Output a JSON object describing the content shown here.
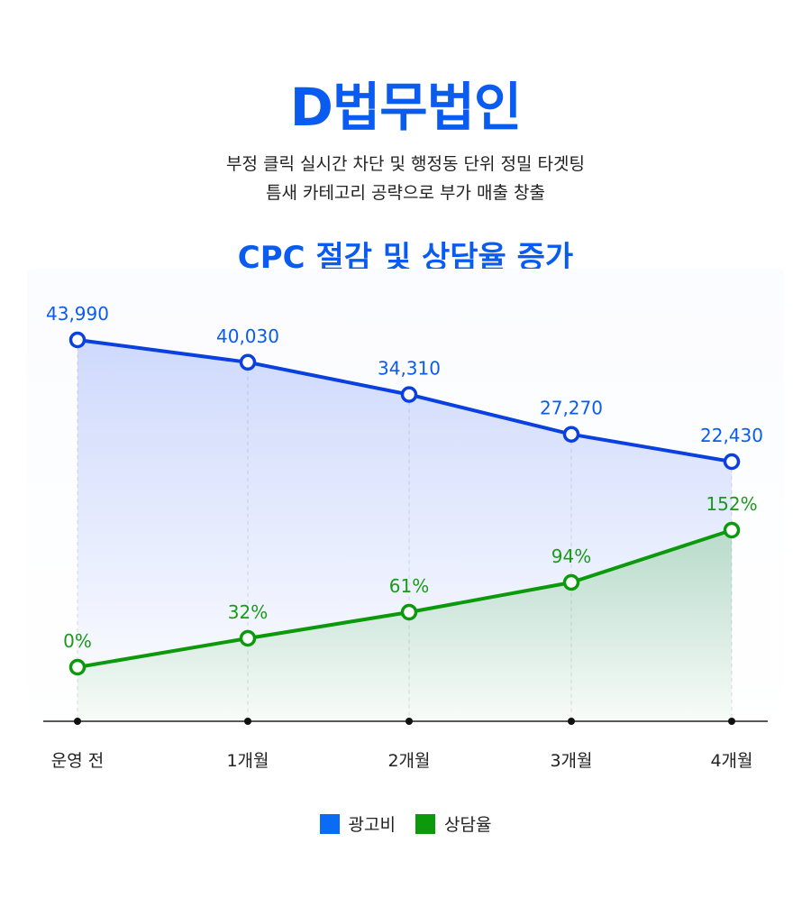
{
  "header": {
    "title": "D법무법인",
    "subtitle_line1": "부정 클릭 실시간 차단 및 행정동 단위 정밀 타겟팅",
    "subtitle_line2": "틈새 카테고리 공략으로 부가 매출 창출"
  },
  "chart_data": {
    "type": "line",
    "title": "CPC 절감 및 상담율 증가",
    "categories": [
      "운영 전",
      "1개월",
      "2개월",
      "3개월",
      "4개월"
    ],
    "series": [
      {
        "name": "광고비",
        "values": [
          43990,
          40030,
          34310,
          27270,
          22430
        ],
        "labels": [
          "43,990",
          "40,030",
          "34,310",
          "27,270",
          "22,430"
        ],
        "color": "#0a3fe0",
        "legend_color": "#0a6cf5"
      },
      {
        "name": "상담율",
        "values": [
          0,
          32,
          61,
          94,
          152
        ],
        "labels": [
          "0%",
          "32%",
          "61%",
          "94%",
          "152%"
        ],
        "color": "#0c9a0c",
        "legend_color": "#0c9a0c"
      }
    ],
    "legend_position": "bottom",
    "grid": false
  },
  "colors": {
    "title_blue": "#0a5cf0",
    "label_blue": "#0a5cf0",
    "label_green": "#1a9a1a"
  }
}
